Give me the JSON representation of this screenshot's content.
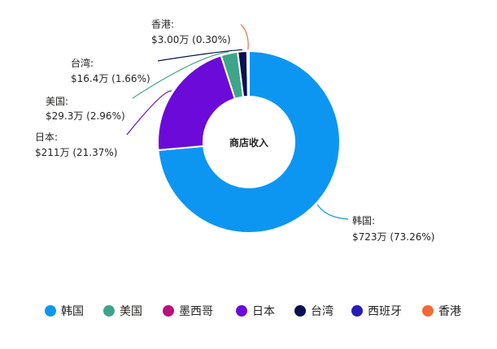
{
  "chart_data": {
    "type": "donut",
    "center_label": "商店收入",
    "slices": [
      {
        "name": "韩国",
        "value_label": "$723万",
        "percent_label": "(73.26%)",
        "value": 723,
        "percent": 73.26,
        "color": "#118DFF"
      },
      {
        "name": "日本",
        "value_label": "$211万",
        "percent_label": "(21.37%)",
        "value": 211,
        "percent": 21.37,
        "color": "#6B007B"
      },
      {
        "name": "美国",
        "value_label": "$29.3万",
        "percent_label": "(2.96%)",
        "value": 29.3,
        "percent": 2.96,
        "color": "#41A58D"
      },
      {
        "name": "台湾",
        "value_label": "$16.4万",
        "percent_label": "(1.66%)",
        "value": 16.4,
        "percent": 1.66,
        "color": "#12239E"
      },
      {
        "name": "香港",
        "value_label": "$3.00万",
        "percent_label": "(0.30%)",
        "value": 3.0,
        "percent": 0.3,
        "color": "#E66C37"
      }
    ],
    "legend": {
      "position": "bottom",
      "items": [
        {
          "name": "韩国",
          "color": "#118DFF"
        },
        {
          "name": "美国",
          "color": "#41A58D"
        },
        {
          "name": "墨西哥",
          "color": "#C4007B"
        },
        {
          "name": "日本",
          "color": "#6B007B"
        },
        {
          "name": "台湾",
          "color": "#0A0B4F"
        },
        {
          "name": "西班牙",
          "color": "#2A1BB5"
        },
        {
          "name": "香港",
          "color": "#F26A33"
        }
      ]
    }
  },
  "colors": {
    "韩国": "#0C96F2",
    "日本": "#6B0AD9",
    "美国": "#3FA58A",
    "台湾": "#0B1050",
    "香港": "#F26A33",
    "墨西哥": "#B8107C",
    "西班牙": "#2A1BB5"
  }
}
